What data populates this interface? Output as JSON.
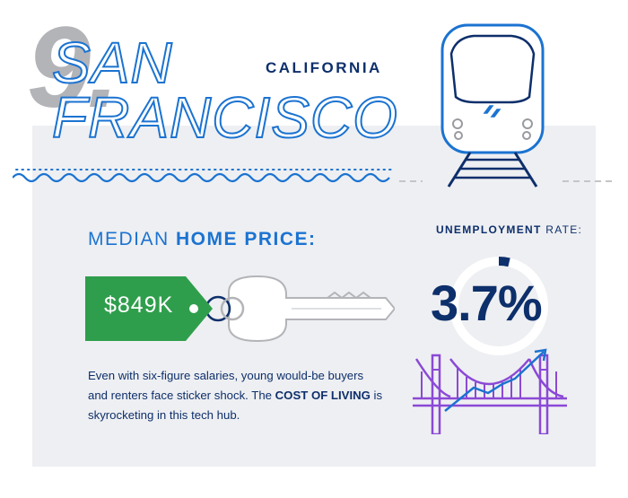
{
  "header": {
    "rank": "9.",
    "city_line1": "SAN",
    "city_line2": "FRANCISCO",
    "state": "CALIFORNIA"
  },
  "home_price": {
    "label_regular": "MEDIAN ",
    "label_bold": "HOME PRICE:",
    "value": "$849K"
  },
  "description": {
    "part1": "Even with six-figure salaries, young would-be buyers and renters face sticker shock. The ",
    "bold": "COST OF LIVING",
    "part2": " is skyrocketing in this tech hub."
  },
  "unemployment": {
    "label_bold": "UNEMPLOYMENT",
    "label_regular": " RATE:",
    "value": "3.7%",
    "percent": 3.7
  },
  "icons": {
    "train": "train-front-icon",
    "key": "key-icon",
    "bridge": "golden-gate-bridge-icon",
    "trend": "trend-up-arrow-icon"
  },
  "colors": {
    "blue": "#1b73d1",
    "navy": "#0d2f6b",
    "green": "#2f9e4c",
    "purple": "#8b49d6",
    "gray": "#b3b4b8",
    "panel": "#eeeff2"
  }
}
